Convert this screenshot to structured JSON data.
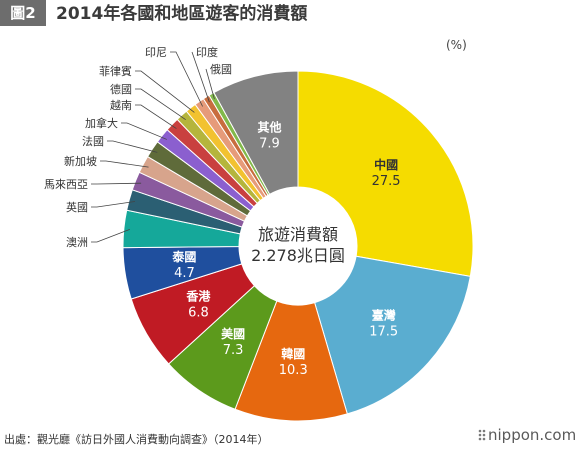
{
  "header": {
    "figure_label": "圖2",
    "title": "2014年各國和地區遊客的消費額"
  },
  "unit_label": "(%)",
  "chart_data": {
    "type": "pie",
    "variant": "donut",
    "title": "2014年各國和地區遊客的消費額",
    "unit": "%",
    "center_label": [
      "旅遊消費額",
      "2.278兆日圓"
    ],
    "slices": [
      {
        "name": "中國",
        "value": 27.5,
        "color": "#f5dc00",
        "label_color": "#333333",
        "show_value": "27.5"
      },
      {
        "name": "臺灣",
        "value": 17.5,
        "color": "#5aadd0",
        "label_color": "#ffffff",
        "show_value": "17.5"
      },
      {
        "name": "韓國",
        "value": 10.3,
        "color": "#e6680f",
        "label_color": "#ffffff",
        "show_value": "10.3"
      },
      {
        "name": "美國",
        "value": 7.3,
        "color": "#5c9a1c",
        "label_color": "#ffffff",
        "show_value": "7.3"
      },
      {
        "name": "香港",
        "value": 6.8,
        "color": "#c01b24",
        "label_color": "#ffffff",
        "show_value": "6.8"
      },
      {
        "name": "泰國",
        "value": 4.7,
        "color": "#1f4f9e",
        "label_color": "#ffffff",
        "show_value": "4.7"
      },
      {
        "name": "澳洲",
        "value": 3.4,
        "color": "#15a89a"
      },
      {
        "name": "英國",
        "value": 1.9,
        "color": "#2b5f73"
      },
      {
        "name": "馬來西亞",
        "value": 1.7,
        "color": "#8a5a9e"
      },
      {
        "name": "新加坡",
        "value": 1.6,
        "color": "#d7a48c"
      },
      {
        "name": "法國",
        "value": 1.6,
        "color": "#5f6b3a"
      },
      {
        "name": "加拿大",
        "value": 1.4,
        "color": "#8b5fcf"
      },
      {
        "name": "越南",
        "value": 1.3,
        "color": "#c9403f"
      },
      {
        "name": "德國",
        "value": 1.1,
        "color": "#b5b53c"
      },
      {
        "name": "菲律賓",
        "value": 1.0,
        "color": "#f2c230"
      },
      {
        "name": "印尼",
        "value": 0.9,
        "color": "#e69b7a"
      },
      {
        "name": "印度",
        "value": 0.6,
        "color": "#c86d3e"
      },
      {
        "name": "俄國",
        "value": 0.5,
        "color": "#82b94a"
      },
      {
        "name": "其他",
        "value": 7.9,
        "color": "#828282",
        "label_color": "#ffffff",
        "show_value": "7.9"
      }
    ]
  },
  "footer": {
    "source": "出處：觀光廳《訪日外國人消費動向調查》（2014年）",
    "logo": "nippon.com"
  }
}
